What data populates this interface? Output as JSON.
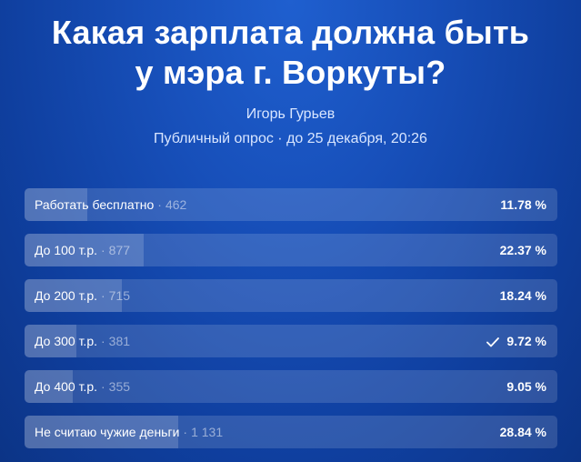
{
  "poll": {
    "title_line1": "Какая зарплата должна быть",
    "title_line2": "у мэра г. Воркуты?",
    "author": "Игорь Гурьев",
    "meta": "Публичный опрос · до 25 декабря, 20:26",
    "separator": "·",
    "options": [
      {
        "label": "Работать бесплатно",
        "count": "462",
        "percent": "11.78 %",
        "share": 0.1178,
        "selected": false
      },
      {
        "label": "До 100 т.р.",
        "count": "877",
        "percent": "22.37 %",
        "share": 0.2237,
        "selected": false
      },
      {
        "label": "До 200 т.р.",
        "count": "715",
        "percent": "18.24 %",
        "share": 0.1824,
        "selected": false
      },
      {
        "label": "До 300 т.р.",
        "count": "381",
        "percent": "9.72 %",
        "share": 0.0972,
        "selected": true
      },
      {
        "label": "До 400 т.р.",
        "count": "355",
        "percent": "9.05 %",
        "share": 0.0905,
        "selected": false
      },
      {
        "label": "Не считаю чужие деньги",
        "count": "1 131",
        "percent": "28.84 %",
        "share": 0.2884,
        "selected": false
      }
    ]
  },
  "colors": {
    "background": "#174fb9",
    "text": "#ffffff"
  },
  "icons": {
    "selected": "check-icon"
  }
}
